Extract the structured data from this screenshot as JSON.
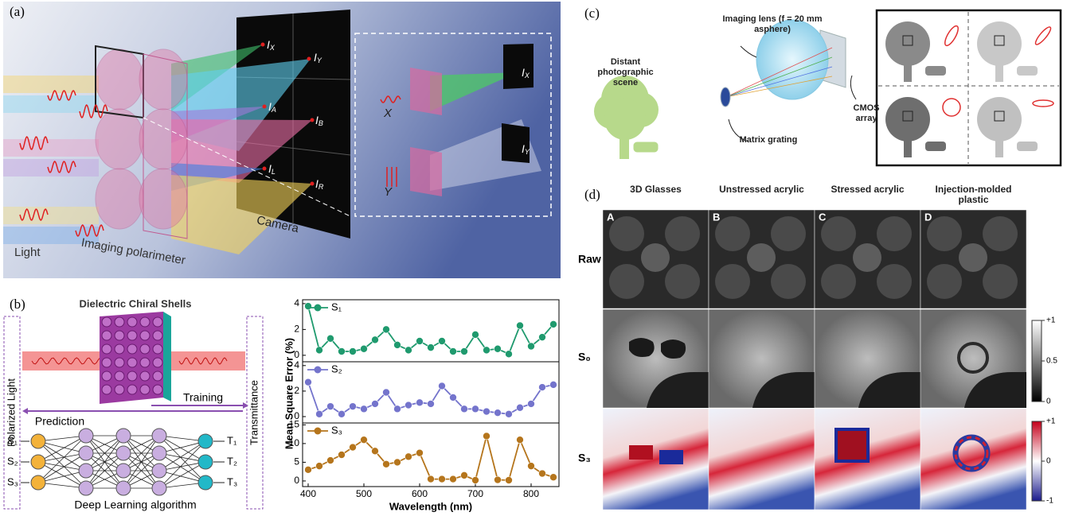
{
  "panel_a": {
    "label": "(a)",
    "intensities": [
      {
        "main": "I",
        "sub": "X"
      },
      {
        "main": "I",
        "sub": "Y"
      },
      {
        "main": "I",
        "sub": "A"
      },
      {
        "main": "I",
        "sub": "B"
      },
      {
        "main": "I",
        "sub": "L"
      },
      {
        "main": "I",
        "sub": "R"
      }
    ],
    "camera": "Camera",
    "light": "Light",
    "polarimeter": "Imaging polarimeter",
    "inset_intensities": [
      {
        "main": "I",
        "sub": "X"
      },
      {
        "main": "I",
        "sub": "Y"
      }
    ],
    "inset_states": [
      "X",
      "Y"
    ]
  },
  "panel_b": {
    "label": "(b)",
    "shells": "Dielectric Chiral Shells",
    "input": "Polarized Light",
    "output": "Transmittance",
    "training": "Training",
    "prediction": "Prediction",
    "inputs": [
      "S₁",
      "S₂",
      "S₃"
    ],
    "outputs": [
      "T₁",
      "T₂",
      "T₃"
    ],
    "algorithm": "Deep Learning algorithm"
  },
  "chart_data": [
    {
      "type": "line",
      "x": [
        400,
        420,
        440,
        460,
        480,
        500,
        520,
        540,
        560,
        580,
        600,
        620,
        640,
        660,
        680,
        700,
        720,
        740,
        760,
        780,
        800,
        820,
        840
      ],
      "xlim": [
        390,
        850
      ],
      "ylim": [
        -0.5,
        4.3
      ],
      "yticks": [
        0,
        2,
        4
      ],
      "ylabel": "Mean Square Error (%)",
      "series": [
        {
          "name": "S₁",
          "color": "#1f9a6e",
          "values": [
            3.8,
            0.4,
            1.3,
            0.3,
            0.3,
            0.5,
            1.2,
            2.0,
            0.8,
            0.4,
            1.1,
            0.6,
            1.1,
            0.3,
            0.3,
            1.6,
            0.4,
            0.5,
            0.1,
            2.3,
            0.7,
            1.4,
            2.4
          ]
        }
      ]
    },
    {
      "type": "line",
      "x": [
        400,
        420,
        440,
        460,
        480,
        500,
        520,
        540,
        560,
        580,
        600,
        620,
        640,
        660,
        680,
        700,
        720,
        740,
        760,
        780,
        800,
        820,
        840
      ],
      "xlim": [
        390,
        850
      ],
      "ylim": [
        -0.5,
        4.3
      ],
      "yticks": [
        0,
        2,
        4
      ],
      "series": [
        {
          "name": "S₂",
          "color": "#7474cc",
          "values": [
            2.7,
            0.2,
            0.8,
            0.2,
            0.8,
            0.6,
            1.0,
            1.9,
            0.6,
            0.9,
            1.1,
            1.0,
            2.4,
            1.5,
            0.6,
            0.6,
            0.4,
            0.3,
            0.2,
            0.7,
            1.0,
            2.3,
            2.5
          ]
        }
      ]
    },
    {
      "type": "line",
      "x": [
        400,
        420,
        440,
        460,
        480,
        500,
        520,
        540,
        560,
        580,
        600,
        620,
        640,
        660,
        680,
        700,
        720,
        740,
        760,
        780,
        800,
        820,
        840
      ],
      "xlim": [
        390,
        850
      ],
      "xticks": [
        400,
        500,
        600,
        700,
        800
      ],
      "xlabel": "Wavelength (nm)",
      "ylim": [
        -1.5,
        15.5
      ],
      "yticks": [
        0,
        5,
        10,
        15
      ],
      "series": [
        {
          "name": "S₃",
          "color": "#b5751c",
          "values": [
            3,
            4,
            5.5,
            7,
            9,
            11,
            8,
            4.5,
            5,
            6.5,
            7.5,
            0.5,
            0.5,
            0.5,
            1.5,
            0.2,
            12,
            0.3,
            0.2,
            11,
            4,
            2,
            1
          ]
        }
      ]
    }
  ],
  "panel_c": {
    "label": "(c)",
    "scene": "Distant photographic scene",
    "lens": "Imaging lens (f = 20 mm asphere)",
    "sensor": "CMOS array",
    "grating": "Matrix grating"
  },
  "panel_d": {
    "label": "(d)",
    "columns": [
      "3D Glasses",
      "Unstressed acrylic",
      "Stressed acrylic",
      "Injection-molded plastic"
    ],
    "letters": [
      "A",
      "B",
      "C",
      "D"
    ],
    "rows": [
      "Raw",
      "S₀",
      "S₃"
    ],
    "colorbars": [
      {
        "clim": [
          0,
          1
        ],
        "ticks": [
          {
            "value": 1,
            "label": "+1"
          },
          0.5,
          0
        ]
      },
      {
        "clim": [
          -1,
          1
        ],
        "ticks": [
          {
            "value": 1,
            "label": "+1"
          },
          0,
          -1
        ]
      }
    ]
  }
}
